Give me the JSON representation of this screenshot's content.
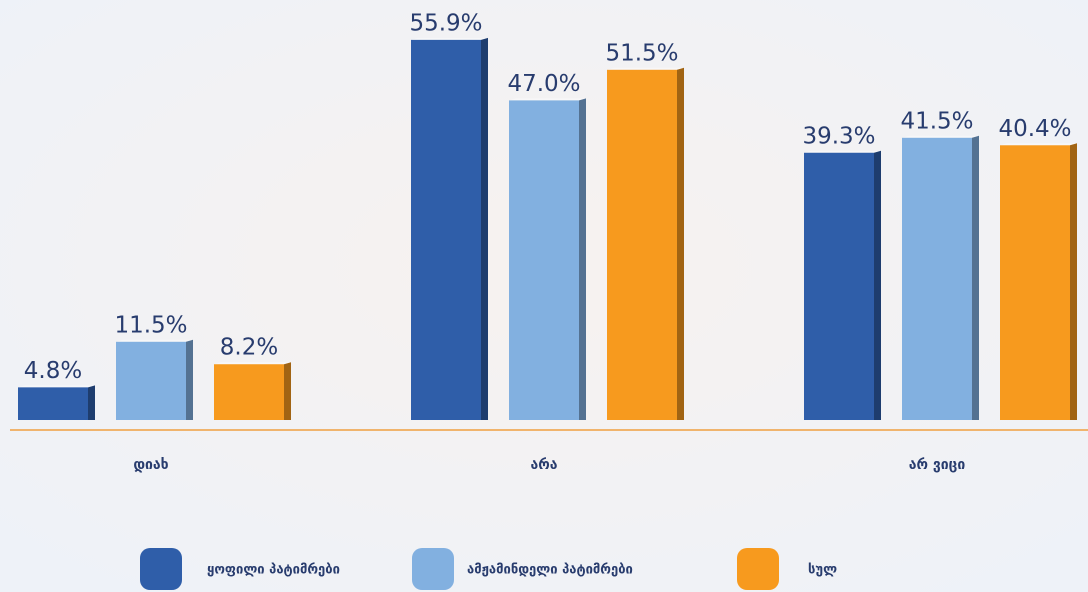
{
  "chart_data": {
    "type": "bar",
    "categories": [
      "დიახ",
      "არა",
      "არ ვიცი"
    ],
    "series": [
      {
        "name": "ყოფილი პატიმრები",
        "color": "#2f5ea9",
        "values": [
          4.8,
          55.9,
          39.3
        ],
        "value_labels": [
          "4.8%",
          "55.9%",
          "39.3%"
        ]
      },
      {
        "name": "ამჟამინდელი პატიმრები",
        "color": "#82b0e0",
        "values": [
          11.5,
          47.0,
          41.5
        ],
        "value_labels": [
          "11.5%",
          "47.0%",
          "41.5%"
        ]
      },
      {
        "name": "სულ",
        "color": "#f79a1e",
        "values": [
          8.2,
          51.5,
          40.4
        ],
        "value_labels": [
          "8.2%",
          "51.5%",
          "40.4%"
        ]
      }
    ],
    "ylim": [
      0,
      60
    ]
  }
}
